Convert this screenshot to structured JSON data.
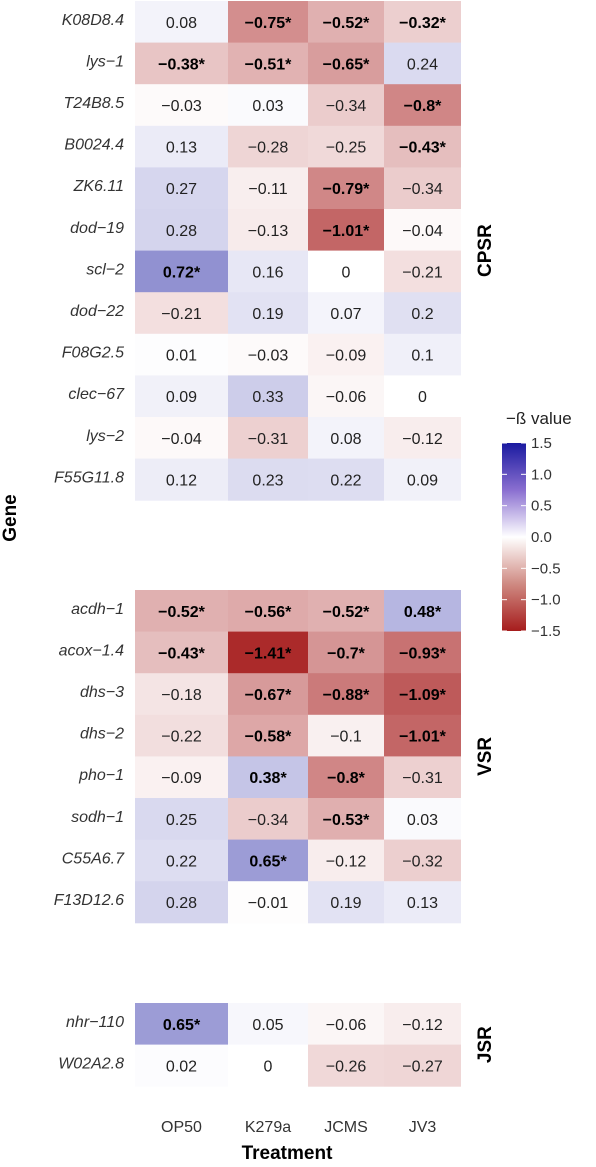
{
  "chart_data": {
    "type": "heatmap",
    "xlabel": "Treatment",
    "ylabel": "Gene",
    "columns": [
      "OP50",
      "K279a",
      "JCMS",
      "JV3"
    ],
    "colorbar": {
      "title": "−ß value",
      "ticks": [
        "1.5",
        "1.0",
        "0.5",
        "0.0",
        "−0.5",
        "−1.0",
        "−1.5"
      ],
      "tick_values": [
        1.5,
        1.0,
        0.5,
        0.0,
        -0.5,
        -1.0,
        -1.5
      ],
      "range": [
        -1.5,
        1.5
      ],
      "colors": {
        "low": "#a61c1c",
        "mid": "#ffffff",
        "high": "#1a1aa0"
      }
    },
    "groups": [
      {
        "name": "CPSR",
        "rows": [
          {
            "gene": "K08D8.4",
            "values": [
              0.08,
              -0.75,
              -0.52,
              -0.32
            ],
            "labels": [
              "0.08",
              "−0.75*",
              "−0.52*",
              "−0.32*"
            ],
            "significant": [
              false,
              true,
              true,
              true
            ]
          },
          {
            "gene": "lys−1",
            "values": [
              -0.38,
              -0.51,
              -0.65,
              0.24
            ],
            "labels": [
              "−0.38*",
              "−0.51*",
              "−0.65*",
              "0.24"
            ],
            "significant": [
              true,
              true,
              true,
              false
            ]
          },
          {
            "gene": "T24B8.5",
            "values": [
              -0.03,
              0.03,
              -0.34,
              -0.8
            ],
            "labels": [
              "−0.03",
              "0.03",
              "−0.34",
              "−0.8*"
            ],
            "significant": [
              false,
              false,
              false,
              true
            ]
          },
          {
            "gene": "B0024.4",
            "values": [
              0.13,
              -0.28,
              -0.25,
              -0.43
            ],
            "labels": [
              "0.13",
              "−0.28",
              "−0.25",
              "−0.43*"
            ],
            "significant": [
              false,
              false,
              false,
              true
            ]
          },
          {
            "gene": "ZK6.11",
            "values": [
              0.27,
              -0.11,
              -0.79,
              -0.34
            ],
            "labels": [
              "0.27",
              "−0.11",
              "−0.79*",
              "−0.34"
            ],
            "significant": [
              false,
              false,
              true,
              false
            ]
          },
          {
            "gene": "dod−19",
            "values": [
              0.28,
              -0.13,
              -1.01,
              -0.04
            ],
            "labels": [
              "0.28",
              "−0.13",
              "−1.01*",
              "−0.04"
            ],
            "significant": [
              false,
              false,
              true,
              false
            ]
          },
          {
            "gene": "scl−2",
            "values": [
              0.72,
              0.16,
              0,
              -0.21
            ],
            "labels": [
              "0.72*",
              "0.16",
              "0",
              "−0.21"
            ],
            "significant": [
              true,
              false,
              false,
              false
            ]
          },
          {
            "gene": "dod−22",
            "values": [
              -0.21,
              0.19,
              0.07,
              0.2
            ],
            "labels": [
              "−0.21",
              "0.19",
              "0.07",
              "0.2"
            ],
            "significant": [
              false,
              false,
              false,
              false
            ]
          },
          {
            "gene": "F08G2.5",
            "values": [
              0.01,
              -0.03,
              -0.09,
              0.1
            ],
            "labels": [
              "0.01",
              "−0.03",
              "−0.09",
              "0.1"
            ],
            "significant": [
              false,
              false,
              false,
              false
            ]
          },
          {
            "gene": "clec−67",
            "values": [
              0.09,
              0.33,
              -0.06,
              0
            ],
            "labels": [
              "0.09",
              "0.33",
              "−0.06",
              "0"
            ],
            "significant": [
              false,
              false,
              false,
              false
            ]
          },
          {
            "gene": "lys−2",
            "values": [
              -0.04,
              -0.31,
              0.08,
              -0.12
            ],
            "labels": [
              "−0.04",
              "−0.31",
              "0.08",
              "−0.12"
            ],
            "significant": [
              false,
              false,
              false,
              false
            ]
          },
          {
            "gene": "F55G11.8",
            "values": [
              0.12,
              0.23,
              0.22,
              0.09
            ],
            "labels": [
              "0.12",
              "0.23",
              "0.22",
              "0.09"
            ],
            "significant": [
              false,
              false,
              false,
              false
            ]
          }
        ]
      },
      {
        "name": "VSR",
        "rows": [
          {
            "gene": "acdh−1",
            "values": [
              -0.52,
              -0.56,
              -0.52,
              0.48
            ],
            "labels": [
              "−0.52*",
              "−0.56*",
              "−0.52*",
              "0.48*"
            ],
            "significant": [
              true,
              true,
              true,
              true
            ]
          },
          {
            "gene": "acox−1.4",
            "values": [
              -0.43,
              -1.41,
              -0.7,
              -0.93
            ],
            "labels": [
              "−0.43*",
              "−1.41*",
              "−0.7*",
              "−0.93*"
            ],
            "significant": [
              true,
              true,
              true,
              true
            ]
          },
          {
            "gene": "dhs−3",
            "values": [
              -0.18,
              -0.67,
              -0.88,
              -1.09
            ],
            "labels": [
              "−0.18",
              "−0.67*",
              "−0.88*",
              "−1.09*"
            ],
            "significant": [
              false,
              true,
              true,
              true
            ]
          },
          {
            "gene": "dhs−2",
            "values": [
              -0.22,
              -0.58,
              -0.1,
              -1.01
            ],
            "labels": [
              "−0.22",
              "−0.58*",
              "−0.1",
              "−1.01*"
            ],
            "significant": [
              false,
              true,
              false,
              true
            ]
          },
          {
            "gene": "pho−1",
            "values": [
              -0.09,
              0.38,
              -0.8,
              -0.31
            ],
            "labels": [
              "−0.09",
              "0.38*",
              "−0.8*",
              "−0.31"
            ],
            "significant": [
              false,
              true,
              true,
              false
            ]
          },
          {
            "gene": "sodh−1",
            "values": [
              0.25,
              -0.34,
              -0.53,
              0.03
            ],
            "labels": [
              "0.25",
              "−0.34",
              "−0.53*",
              "0.03"
            ],
            "significant": [
              false,
              false,
              true,
              false
            ]
          },
          {
            "gene": "C55A6.7",
            "values": [
              0.22,
              0.65,
              -0.12,
              -0.32
            ],
            "labels": [
              "0.22",
              "0.65*",
              "−0.12",
              "−0.32"
            ],
            "significant": [
              false,
              true,
              false,
              false
            ]
          },
          {
            "gene": "F13D12.6",
            "values": [
              0.28,
              -0.01,
              0.19,
              0.13
            ],
            "labels": [
              "0.28",
              "−0.01",
              "0.19",
              "0.13"
            ],
            "significant": [
              false,
              false,
              false,
              false
            ]
          }
        ]
      },
      {
        "name": "JSR",
        "rows": [
          {
            "gene": "nhr−110",
            "values": [
              0.65,
              0.05,
              -0.06,
              -0.12
            ],
            "labels": [
              "0.65*",
              "0.05",
              "−0.06",
              "−0.12"
            ],
            "significant": [
              true,
              false,
              false,
              false
            ]
          },
          {
            "gene": "W02A2.8",
            "values": [
              0.02,
              0,
              -0.26,
              -0.27
            ],
            "labels": [
              "0.02",
              "0",
              "−0.26",
              "−0.27"
            ],
            "significant": [
              false,
              false,
              false,
              false
            ]
          }
        ]
      }
    ]
  }
}
